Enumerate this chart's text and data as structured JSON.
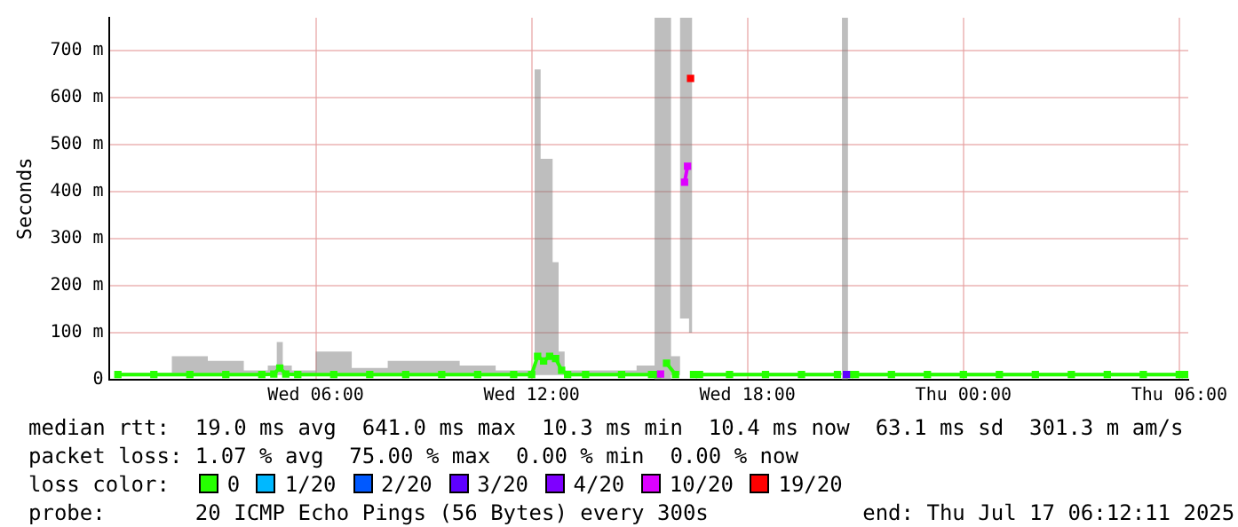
{
  "chart_data": {
    "type": "line",
    "ylabel": "Seconds",
    "legend_title": "loss color:",
    "legend": "bottom",
    "grid": true,
    "marker": "square",
    "line_style": "solid",
    "x": [
      "2025-07-16T00:30",
      "2025-07-16T01:30",
      "2025-07-16T02:30",
      "2025-07-16T03:30",
      "2025-07-16T04:30",
      "2025-07-16T04:50",
      "2025-07-16T05:00",
      "2025-07-16T05:10",
      "2025-07-16T05:30",
      "2025-07-16T06:30",
      "2025-07-16T07:30",
      "2025-07-16T08:30",
      "2025-07-16T09:30",
      "2025-07-16T10:30",
      "2025-07-16T11:30",
      "2025-07-16T12:00",
      "2025-07-16T12:10",
      "2025-07-16T12:20",
      "2025-07-16T12:30",
      "2025-07-16T12:40",
      "2025-07-16T12:50",
      "2025-07-16T13:00",
      "2025-07-16T13:30",
      "2025-07-16T14:30",
      "2025-07-16T15:20",
      "2025-07-16T15:30",
      "2025-07-16T15:35",
      "2025-07-16T15:45",
      "2025-07-16T16:00",
      "2025-07-16T16:15",
      "2025-07-16T16:20",
      "2025-07-16T16:25",
      "2025-07-16T16:30",
      "2025-07-16T16:40",
      "2025-07-16T17:30",
      "2025-07-16T18:30",
      "2025-07-16T19:30",
      "2025-07-16T20:30",
      "2025-07-16T20:45",
      "2025-07-16T20:50",
      "2025-07-16T21:00",
      "2025-07-16T22:00",
      "2025-07-16T23:00",
      "2025-07-17T00:00",
      "2025-07-17T01:00",
      "2025-07-17T02:00",
      "2025-07-17T03:00",
      "2025-07-17T04:00",
      "2025-07-17T05:00",
      "2025-07-17T06:00",
      "2025-07-17T06:10"
    ],
    "xlim": [
      "2025-07-16T00:15",
      "2025-07-17T06:15"
    ],
    "xticks": [
      {
        "value": "2025-07-16T06:00",
        "label": "Wed 06:00"
      },
      {
        "value": "2025-07-16T12:00",
        "label": "Wed 12:00"
      },
      {
        "value": "2025-07-16T18:00",
        "label": "Wed 18:00"
      },
      {
        "value": "2025-07-17T00:00",
        "label": "Thu 00:00"
      },
      {
        "value": "2025-07-17T06:00",
        "label": "Thu 06:00"
      }
    ],
    "ylim": [
      0,
      770
    ],
    "yticks": [
      0,
      {
        "value": 100,
        "label": "100 m"
      },
      {
        "value": 200,
        "label": "200 m"
      },
      {
        "value": 300,
        "label": "300 m"
      },
      {
        "value": 400,
        "label": "400 m"
      },
      {
        "value": 500,
        "label": "500 m"
      },
      {
        "value": 600,
        "label": "600 m"
      },
      {
        "value": 700,
        "label": "700 m"
      }
    ],
    "series": [
      {
        "name": "0",
        "color": "#26ff00",
        "values": [
          11,
          11,
          11,
          11,
          11,
          12,
          25,
          12,
          11,
          11,
          11,
          11,
          11,
          11,
          11,
          11,
          50,
          40,
          50,
          45,
          20,
          11,
          11,
          11,
          11,
          11,
          null,
          35,
          11,
          null,
          null,
          null,
          11,
          11,
          11,
          11,
          11,
          11,
          null,
          11,
          11,
          11,
          11,
          11,
          11,
          11,
          11,
          11,
          11,
          11,
          11
        ],
        "lower": [
          10,
          10,
          10,
          10,
          10,
          10,
          10,
          10,
          10,
          10,
          10,
          10,
          10,
          10,
          10,
          10,
          10,
          10,
          10,
          10,
          10,
          10,
          10,
          10,
          10,
          0,
          0,
          0,
          10,
          130,
          130,
          100,
          10,
          10,
          10,
          10,
          10,
          10,
          0,
          10,
          10,
          10,
          10,
          10,
          10,
          10,
          10,
          10,
          10,
          10,
          10
        ],
        "upper": [
          15,
          15,
          50,
          40,
          20,
          30,
          80,
          30,
          20,
          60,
          25,
          40,
          40,
          30,
          20,
          20,
          660,
          470,
          470,
          250,
          60,
          20,
          20,
          20,
          30,
          770,
          770,
          770,
          50,
          770,
          770,
          770,
          15,
          15,
          15,
          15,
          15,
          15,
          770,
          15,
          15,
          15,
          15,
          15,
          15,
          15,
          15,
          15,
          15,
          15,
          15
        ]
      },
      {
        "name": "1/20",
        "color": "#00b8ff",
        "values": [
          null,
          null,
          null,
          null,
          null,
          null,
          null,
          null,
          null,
          null,
          null,
          null,
          null,
          null,
          null,
          null,
          null,
          null,
          null,
          null,
          null,
          null,
          null,
          null,
          null,
          null,
          null,
          null,
          null,
          null,
          null,
          null,
          null,
          null,
          null,
          null,
          null,
          null,
          null,
          null,
          null,
          null,
          null,
          null,
          null,
          null,
          null,
          null,
          null,
          null,
          null
        ]
      },
      {
        "name": "2/20",
        "color": "#0059ff",
        "values": [
          null,
          null,
          null,
          null,
          null,
          null,
          null,
          null,
          null,
          null,
          null,
          null,
          null,
          null,
          null,
          null,
          null,
          null,
          null,
          null,
          null,
          null,
          null,
          null,
          null,
          null,
          null,
          null,
          null,
          null,
          null,
          null,
          null,
          null,
          null,
          null,
          null,
          null,
          null,
          null,
          null,
          null,
          null,
          null,
          null,
          null,
          null,
          null,
          null,
          null,
          null
        ]
      },
      {
        "name": "3/20",
        "color": "#5e00ff",
        "values": [
          null,
          null,
          null,
          null,
          null,
          null,
          null,
          null,
          null,
          null,
          null,
          null,
          null,
          null,
          null,
          null,
          null,
          null,
          null,
          null,
          null,
          null,
          null,
          null,
          null,
          null,
          null,
          null,
          null,
          null,
          null,
          null,
          null,
          null,
          null,
          null,
          null,
          null,
          11,
          null,
          null,
          null,
          null,
          null,
          null,
          null,
          null,
          null,
          null,
          null,
          null
        ]
      },
      {
        "name": "4/20",
        "color": "#7e00ff",
        "values": [
          null,
          null,
          null,
          null,
          null,
          null,
          null,
          null,
          null,
          null,
          null,
          null,
          null,
          null,
          null,
          null,
          null,
          null,
          null,
          null,
          null,
          null,
          null,
          null,
          null,
          null,
          null,
          null,
          null,
          null,
          null,
          null,
          null,
          null,
          null,
          null,
          null,
          null,
          null,
          null,
          null,
          null,
          null,
          null,
          null,
          null,
          null,
          null,
          null,
          null,
          null
        ]
      },
      {
        "name": "10/20",
        "color": "#dd00ff",
        "values": [
          null,
          null,
          null,
          null,
          null,
          null,
          null,
          null,
          null,
          null,
          null,
          null,
          null,
          null,
          null,
          null,
          null,
          null,
          null,
          null,
          null,
          null,
          null,
          null,
          null,
          null,
          12,
          null,
          null,
          420,
          454,
          null,
          null,
          null,
          null,
          null,
          null,
          null,
          null,
          null,
          null,
          null,
          null,
          null,
          null,
          null,
          null,
          null,
          null,
          null,
          null
        ]
      },
      {
        "name": "19/20",
        "color": "#ff0000",
        "values": [
          null,
          null,
          null,
          null,
          null,
          null,
          null,
          null,
          null,
          null,
          null,
          null,
          null,
          null,
          null,
          null,
          null,
          null,
          null,
          null,
          null,
          null,
          null,
          null,
          null,
          null,
          null,
          null,
          null,
          null,
          null,
          641,
          null,
          null,
          null,
          null,
          null,
          null,
          null,
          null,
          null,
          null,
          null,
          null,
          null,
          null,
          null,
          null,
          null,
          null,
          null
        ]
      }
    ],
    "annotations": [
      "median rtt:  19.0 ms avg  641.0 ms max  10.3 ms min  10.4 ms now  63.1 ms sd  301.3 m am/s",
      "packet loss: 1.07 % avg  75.00 % max  0.00 % min  0.00 % now",
      "probe:       20 ICMP Echo Pings (56 Bytes) every 300s            end: Thu Jul 17 06:12:11 2025"
    ]
  }
}
